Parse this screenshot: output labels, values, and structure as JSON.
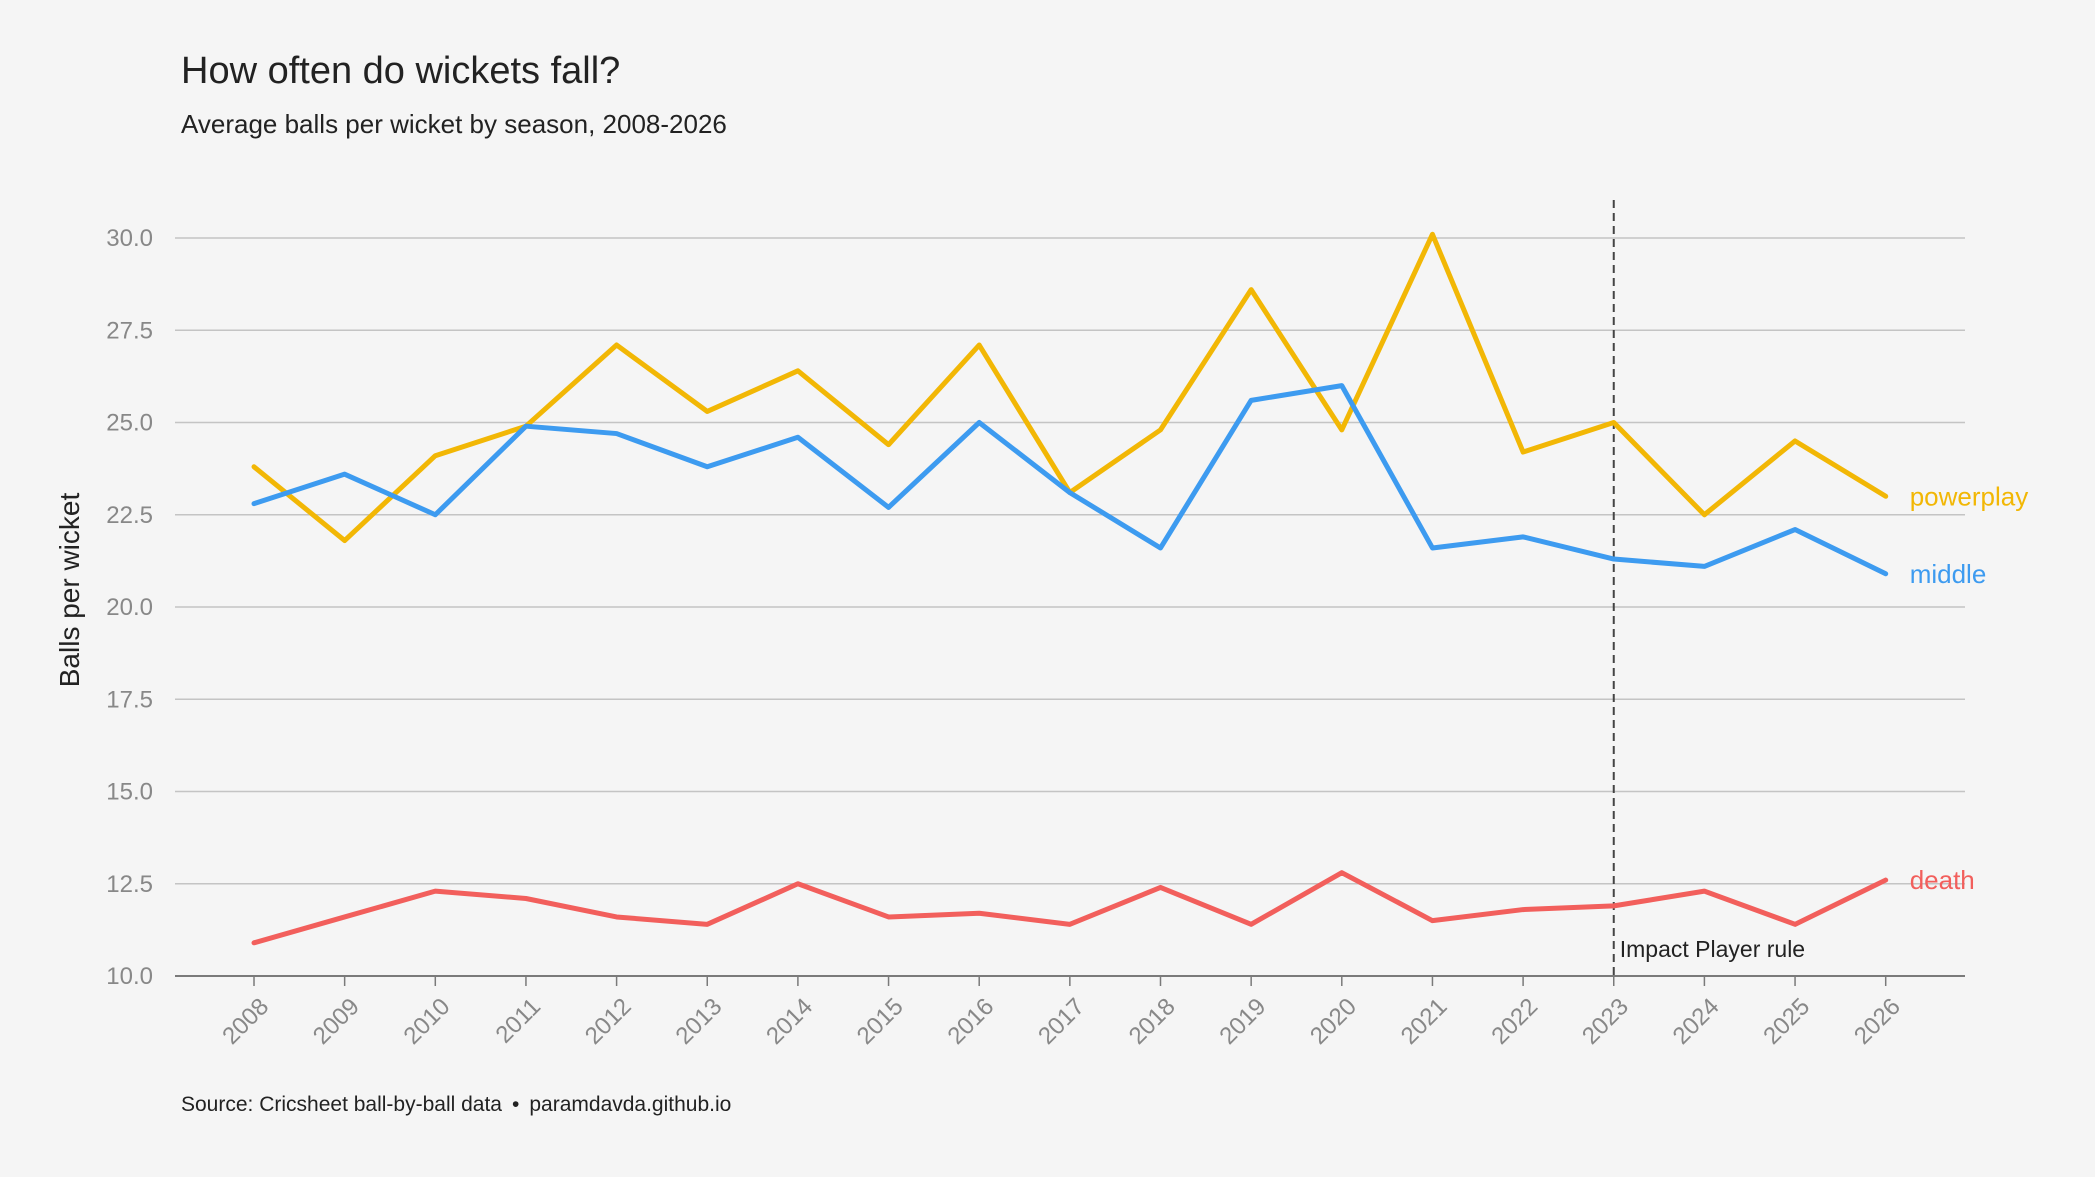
{
  "chart_data": {
    "type": "line",
    "title": "How often do wickets fall?",
    "subtitle": "Average balls per wicket by season, 2008-2026",
    "ylabel": "Balls per wicket",
    "xlabel": "",
    "ylim": [
      10.0,
      31.0
    ],
    "yticks": [
      "10.0",
      "12.5",
      "15.0",
      "17.5",
      "20.0",
      "22.5",
      "25.0",
      "27.5",
      "30.0"
    ],
    "grid": "horizontal",
    "legend": "inline labels at line ends",
    "categories": [
      "2008",
      "2009",
      "2010",
      "2011",
      "2012",
      "2013",
      "2014",
      "2015",
      "2016",
      "2017",
      "2018",
      "2019",
      "2020",
      "2021",
      "2022",
      "2023",
      "2024",
      "2025",
      "2026"
    ],
    "series": [
      {
        "name": "powerplay",
        "color": "#F2B705",
        "values": [
          23.8,
          21.8,
          24.1,
          24.9,
          27.1,
          25.3,
          26.4,
          24.4,
          27.1,
          23.1,
          24.8,
          28.6,
          24.8,
          30.1,
          24.2,
          25.0,
          22.5,
          24.5,
          23.0
        ]
      },
      {
        "name": "middle",
        "color": "#3D9BF0",
        "values": [
          22.8,
          23.6,
          22.5,
          24.9,
          24.7,
          23.8,
          24.6,
          22.7,
          25.0,
          23.1,
          21.6,
          25.6,
          26.0,
          21.6,
          21.9,
          21.3,
          21.1,
          22.1,
          20.9
        ]
      },
      {
        "name": "death",
        "color": "#F25F5C",
        "values": [
          10.9,
          11.6,
          12.3,
          12.1,
          11.6,
          11.4,
          12.5,
          11.6,
          11.7,
          11.4,
          12.4,
          11.4,
          12.8,
          11.5,
          11.8,
          11.9,
          12.3,
          11.4,
          12.6
        ]
      }
    ],
    "annotations": [
      {
        "x": "2023",
        "text": "Impact Player rule",
        "style": "dashed vertical line"
      }
    ],
    "source": "Source: Cricsheet ball-by-ball data",
    "source_sep": "•",
    "source_site": "paramdavda.github.io"
  }
}
